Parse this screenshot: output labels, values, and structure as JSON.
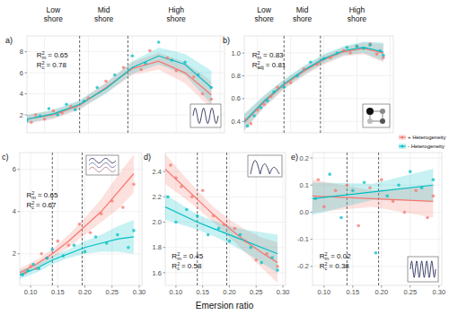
{
  "chart_data": [
    {
      "type": "scatter",
      "title": "a)",
      "xlim": [
        0.08,
        0.305
      ],
      "ylim": [
        0.3,
        9.5
      ],
      "grid": true,
      "tick_labels": "y",
      "xticks": [
        {
          "value": 0.1,
          "label": "0.10"
        },
        0.15,
        {
          "value": 0.2,
          "label": "0.20"
        },
        0.25,
        {
          "value": 0.3,
          "label": "0.30"
        }
      ],
      "yticks": [
        2,
        4,
        6,
        8
      ],
      "reference_lines": [
        0.14,
        0.195
      ],
      "zone_labels": [
        "Low shore",
        "Mid shore",
        "High shore"
      ],
      "stats": [
        {
          "base": "R",
          "sup": "2",
          "sub": "m",
          "value": "= 0.65"
        },
        {
          "base": "R",
          "sup": "2",
          "sub": "c",
          "value": "= 0.78"
        }
      ],
      "series": [
        {
          "type": "scatter",
          "color": "#F8766D",
          "x": [
            0.085,
            0.09,
            0.1,
            0.11,
            0.12,
            0.13,
            0.15,
            0.17,
            0.19,
            0.21,
            0.22,
            0.24,
            0.25,
            0.27,
            0.28,
            0.29
          ],
          "values": [
            1.3,
            2.0,
            1.6,
            2.4,
            2.2,
            2.8,
            3.6,
            5.2,
            6.5,
            6.3,
            8.1,
            7.4,
            6.2,
            5.6,
            4.0,
            3.5
          ]
        },
        {
          "type": "scatter",
          "color": "#00BFC4",
          "x": [
            0.08,
            0.095,
            0.105,
            0.115,
            0.125,
            0.135,
            0.145,
            0.16,
            0.18,
            0.2,
            0.215,
            0.23,
            0.245,
            0.26,
            0.275,
            0.29
          ],
          "values": [
            1.5,
            1.9,
            2.6,
            2.0,
            3.0,
            2.5,
            3.3,
            4.6,
            5.8,
            7.6,
            6.9,
            8.9,
            7.2,
            7.0,
            5.8,
            4.6
          ]
        },
        {
          "type": "line",
          "color": "#F8766D",
          "x": [
            0.08,
            0.11,
            0.14,
            0.17,
            0.2,
            0.23,
            0.26,
            0.29
          ],
          "values": [
            1.6,
            2.0,
            2.9,
            4.6,
            6.4,
            7.1,
            6.0,
            3.9
          ],
          "lower": [
            1.2,
            1.6,
            2.5,
            4.1,
            5.8,
            6.3,
            5.0,
            2.6
          ],
          "upper": [
            2.0,
            2.4,
            3.3,
            5.1,
            7.0,
            7.9,
            7.0,
            5.2
          ]
        },
        {
          "type": "line",
          "color": "#00BFC4",
          "x": [
            0.08,
            0.11,
            0.14,
            0.17,
            0.2,
            0.23,
            0.26,
            0.29
          ],
          "values": [
            1.6,
            2.1,
            3.0,
            4.5,
            6.5,
            7.6,
            6.8,
            4.6
          ],
          "lower": [
            1.2,
            1.7,
            2.6,
            4.0,
            5.9,
            6.8,
            5.8,
            3.0
          ],
          "upper": [
            2.0,
            2.5,
            3.4,
            5.0,
            7.1,
            8.4,
            7.8,
            6.2
          ]
        }
      ]
    },
    {
      "type": "scatter",
      "title": "b)",
      "xlim": [
        0.08,
        0.305
      ],
      "ylim": [
        0.3,
        1.15
      ],
      "grid": true,
      "tick_labels": "y",
      "legend": "right",
      "xticks": [
        {
          "value": 0.1,
          "label": "0.10"
        },
        0.15,
        {
          "value": 0.2,
          "label": "0.20"
        },
        0.25,
        {
          "value": 0.3,
          "label": "0.30"
        }
      ],
      "yticks": [
        0.4,
        0.6,
        0.8,
        {
          "value": 1,
          "label": "1.0"
        }
      ],
      "reference_lines": [
        0.14,
        0.195
      ],
      "zone_labels": [
        "Low shore",
        "Mid shore",
        "High shore"
      ],
      "stats": [
        {
          "base": "R",
          "sup": "2",
          "sub": "m",
          "value": "= 0.83"
        },
        {
          "base": "R",
          "sup": "2",
          "sub": "adj",
          "value": "= 0.81"
        }
      ],
      "series": [
        {
          "type": "scatter",
          "name": "+ Heterogeneity",
          "color": "#F8766D",
          "x": [
            0.08,
            0.09,
            0.1,
            0.11,
            0.12,
            0.13,
            0.15,
            0.17,
            0.19,
            0.21,
            0.23,
            0.24,
            0.25,
            0.27,
            0.28,
            0.29
          ],
          "values": [
            0.42,
            0.38,
            0.5,
            0.55,
            0.62,
            0.7,
            0.74,
            0.86,
            0.9,
            0.96,
            1.02,
            1.0,
            1.06,
            1.08,
            0.99,
            0.96
          ]
        },
        {
          "type": "scatter",
          "name": "- Heterogeneity",
          "color": "#00BFC4",
          "x": [
            0.085,
            0.095,
            0.105,
            0.115,
            0.125,
            0.14,
            0.16,
            0.18,
            0.2,
            0.22,
            0.235,
            0.25,
            0.26,
            0.27,
            0.285,
            0.29
          ],
          "values": [
            0.36,
            0.45,
            0.52,
            0.58,
            0.66,
            0.7,
            0.8,
            0.92,
            0.95,
            1.0,
            1.05,
            1.06,
            1.04,
            1.07,
            1.02,
            0.98
          ]
        },
        {
          "type": "line",
          "color": "#F8766D",
          "x": [
            0.08,
            0.11,
            0.14,
            0.17,
            0.2,
            0.23,
            0.26,
            0.29
          ],
          "values": [
            0.39,
            0.57,
            0.72,
            0.84,
            0.94,
            1.01,
            1.04,
            1.0
          ],
          "lower": [
            0.32,
            0.52,
            0.68,
            0.8,
            0.9,
            0.97,
            0.99,
            0.92
          ],
          "upper": [
            0.46,
            0.62,
            0.76,
            0.88,
            0.98,
            1.05,
            1.09,
            1.08
          ]
        },
        {
          "type": "line",
          "color": "#00BFC4",
          "x": [
            0.08,
            0.11,
            0.14,
            0.17,
            0.2,
            0.23,
            0.26,
            0.29
          ],
          "values": [
            0.4,
            0.58,
            0.73,
            0.85,
            0.95,
            1.02,
            1.05,
            1.01
          ],
          "lower": [
            0.33,
            0.53,
            0.69,
            0.81,
            0.91,
            0.98,
            1.0,
            0.93
          ],
          "upper": [
            0.47,
            0.63,
            0.77,
            0.89,
            0.99,
            1.06,
            1.1,
            1.09
          ]
        }
      ]
    },
    {
      "type": "scatter",
      "title": "c)",
      "xlim": [
        0.08,
        0.305
      ],
      "ylim": [
        0.5,
        6.8
      ],
      "grid": true,
      "xticks": [
        {
          "value": 0.1,
          "label": "0.10"
        },
        0.15,
        {
          "value": 0.2,
          "label": "0.20"
        },
        0.25,
        {
          "value": 0.3,
          "label": "0.30"
        }
      ],
      "yticks": [
        2,
        4,
        6
      ],
      "reference_lines": [
        0.14,
        0.195
      ],
      "stats": [
        {
          "base": "R",
          "sup": "2",
          "sub": "m",
          "value": "= 0.65"
        },
        {
          "base": "R",
          "sup": "2",
          "sub": "c",
          "value": "= 0.67"
        }
      ],
      "series": [
        {
          "type": "scatter",
          "color": "#F8766D",
          "x": [
            0.09,
            0.1,
            0.11,
            0.12,
            0.13,
            0.15,
            0.17,
            0.19,
            0.21,
            0.23,
            0.25,
            0.27,
            0.29
          ],
          "values": [
            1.1,
            1.4,
            1.3,
            2.0,
            1.8,
            2.6,
            2.4,
            3.4,
            3.0,
            3.9,
            4.5,
            4.2,
            5.3
          ]
        },
        {
          "type": "scatter",
          "color": "#00BFC4",
          "x": [
            0.085,
            0.095,
            0.105,
            0.115,
            0.13,
            0.14,
            0.16,
            0.18,
            0.2,
            0.22,
            0.24,
            0.26,
            0.28,
            0.29
          ],
          "values": [
            1.0,
            1.2,
            1.5,
            1.3,
            1.8,
            2.2,
            1.9,
            2.4,
            2.1,
            2.8,
            2.5,
            2.9,
            2.3,
            3.1
          ]
        },
        {
          "type": "line",
          "color": "#F8766D",
          "x": [
            0.08,
            0.11,
            0.14,
            0.17,
            0.2,
            0.23,
            0.26,
            0.29
          ],
          "values": [
            1.1,
            1.5,
            2.0,
            2.6,
            3.3,
            4.0,
            4.9,
            5.8
          ],
          "lower": [
            0.9,
            1.3,
            1.8,
            2.3,
            2.9,
            3.5,
            4.1,
            4.9
          ],
          "upper": [
            1.3,
            1.7,
            2.2,
            2.9,
            3.7,
            4.6,
            5.7,
            6.7
          ]
        },
        {
          "type": "line",
          "color": "#00BFC4",
          "x": [
            0.08,
            0.11,
            0.14,
            0.17,
            0.2,
            0.23,
            0.26,
            0.29
          ],
          "values": [
            1.0,
            1.3,
            1.7,
            2.0,
            2.3,
            2.5,
            2.7,
            2.8
          ],
          "lower": [
            0.8,
            1.1,
            1.5,
            1.8,
            2.0,
            2.1,
            2.1,
            2.0
          ],
          "upper": [
            1.2,
            1.5,
            1.9,
            2.2,
            2.6,
            2.9,
            3.3,
            3.6
          ]
        }
      ]
    },
    {
      "type": "scatter",
      "title": "d)",
      "xlim": [
        0.08,
        0.305
      ],
      "ylim": [
        1.5,
        2.55
      ],
      "grid": true,
      "x_label": "Emersion ratio",
      "xticks": [
        {
          "value": 0.1,
          "label": "0.10"
        },
        0.15,
        {
          "value": 0.2,
          "label": "0.20"
        },
        0.25,
        {
          "value": 0.3,
          "label": "0.30"
        }
      ],
      "yticks": [
        1.6,
        1.8,
        {
          "value": 2,
          "label": "2.0"
        },
        2.2,
        2.4
      ],
      "reference_lines": [
        0.14,
        0.195
      ],
      "stats": [
        {
          "base": "R",
          "sup": "2",
          "sub": "m",
          "value": "= 0.45"
        },
        {
          "base": "R",
          "sup": "2",
          "sub": "c",
          "value": "= 0.58"
        }
      ],
      "series": [
        {
          "type": "scatter",
          "color": "#F8766D",
          "x": [
            0.09,
            0.1,
            0.11,
            0.13,
            0.15,
            0.17,
            0.19,
            0.21,
            0.23,
            0.25,
            0.27,
            0.29
          ],
          "values": [
            2.45,
            2.35,
            2.28,
            2.2,
            2.25,
            2.05,
            1.98,
            1.95,
            1.85,
            1.7,
            1.75,
            1.65
          ]
        },
        {
          "type": "scatter",
          "color": "#00BFC4",
          "x": [
            0.085,
            0.1,
            0.12,
            0.14,
            0.16,
            0.18,
            0.2,
            0.22,
            0.24,
            0.26,
            0.28,
            0.29
          ],
          "values": [
            2.2,
            2.0,
            2.1,
            2.05,
            1.9,
            1.95,
            1.85,
            1.9,
            1.8,
            1.68,
            1.72,
            1.62
          ]
        },
        {
          "type": "line",
          "color": "#F8766D",
          "x": [
            0.08,
            0.11,
            0.14,
            0.17,
            0.2,
            0.23,
            0.26,
            0.29
          ],
          "values": [
            2.42,
            2.3,
            2.18,
            2.06,
            1.95,
            1.85,
            1.76,
            1.68
          ],
          "lower": [
            2.3,
            2.21,
            2.11,
            2.0,
            1.88,
            1.76,
            1.64,
            1.52
          ],
          "upper": [
            2.54,
            2.39,
            2.25,
            2.12,
            2.02,
            1.94,
            1.88,
            1.84
          ]
        },
        {
          "type": "line",
          "color": "#00BFC4",
          "x": [
            0.08,
            0.11,
            0.14,
            0.17,
            0.2,
            0.23,
            0.26,
            0.29
          ],
          "values": [
            2.12,
            2.06,
            2.0,
            1.95,
            1.9,
            1.85,
            1.8,
            1.75
          ],
          "lower": [
            2.02,
            1.98,
            1.94,
            1.89,
            1.83,
            1.76,
            1.68,
            1.6
          ],
          "upper": [
            2.22,
            2.14,
            2.06,
            2.01,
            1.97,
            1.94,
            1.92,
            1.9
          ]
        }
      ]
    },
    {
      "type": "scatter",
      "title": "e)",
      "xlim": [
        0.08,
        0.305
      ],
      "ylim": [
        -0.27,
        0.22
      ],
      "grid": true,
      "xticks": [
        {
          "value": 0.1,
          "label": "0.10"
        },
        0.15,
        {
          "value": 0.2,
          "label": "0.20"
        },
        0.25,
        {
          "value": 0.3,
          "label": "0.30"
        }
      ],
      "yticks": [
        -0.2,
        -0.1,
        {
          "value": 0,
          "label": "0.0"
        },
        0.1,
        0.2
      ],
      "reference_lines": [
        0.14,
        0.195
      ],
      "stats": [
        {
          "base": "R",
          "sup": "2",
          "sub": "m",
          "value": "= 0.02"
        },
        {
          "base": "R",
          "sup": "2",
          "sub": "c",
          "value": "= 0.38"
        }
      ],
      "series": [
        {
          "type": "scatter",
          "color": "#F8766D",
          "x": [
            0.09,
            0.1,
            0.12,
            0.14,
            0.16,
            0.18,
            0.2,
            0.22,
            0.24,
            0.26,
            0.28,
            0.29
          ],
          "values": [
            0.12,
            0.02,
            0.08,
            0.1,
            -0.05,
            0.09,
            0.12,
            0.04,
            0.0,
            0.08,
            -0.02,
            0.06
          ]
        },
        {
          "type": "scatter",
          "color": "#00BFC4",
          "x": [
            0.085,
            0.11,
            0.13,
            0.15,
            0.17,
            0.19,
            0.21,
            0.23,
            0.25,
            0.27,
            0.29
          ],
          "values": [
            0.05,
            0.14,
            -0.02,
            0.08,
            0.11,
            -0.15,
            0.06,
            0.1,
            0.15,
            0.09,
            0.12
          ]
        },
        {
          "type": "line",
          "color": "#F8766D",
          "x": [
            0.08,
            0.185,
            0.29
          ],
          "values": [
            0.06,
            0.05,
            0.04
          ],
          "lower": [
            0.0,
            0.02,
            -0.02
          ],
          "upper": [
            0.12,
            0.08,
            0.1
          ]
        },
        {
          "type": "line",
          "color": "#00BFC4",
          "x": [
            0.08,
            0.185,
            0.29
          ],
          "values": [
            0.05,
            0.075,
            0.1
          ],
          "lower": [
            -0.01,
            0.045,
            0.04
          ],
          "upper": [
            0.11,
            0.105,
            0.16
          ]
        }
      ]
    }
  ]
}
